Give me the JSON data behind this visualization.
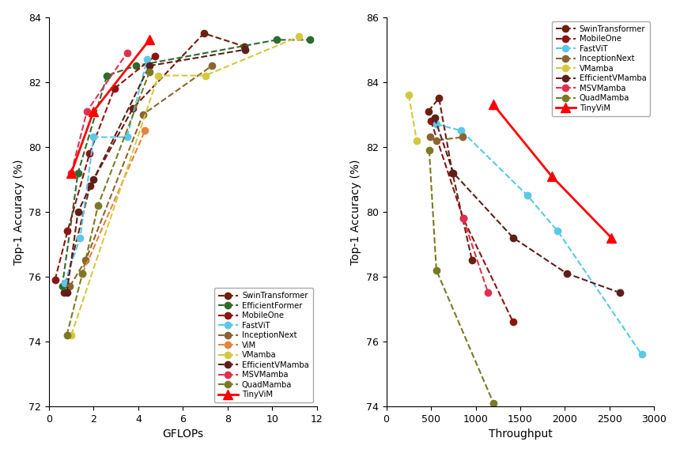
{
  "left_plot": {
    "xlabel": "GFLOPs",
    "ylabel": "Top-1 Accuracy (%)",
    "xlim": [
      0,
      12
    ],
    "ylim": [
      72,
      84
    ],
    "xticks": [
      0,
      2,
      4,
      6,
      8,
      10,
      12
    ],
    "yticks": [
      72,
      74,
      76,
      78,
      80,
      82,
      84
    ],
    "series": [
      {
        "name": "SwinTransformer",
        "x": [
          0.66,
          1.84,
          3.77,
          6.94,
          8.74
        ],
        "y": [
          75.5,
          78.8,
          81.2,
          83.5,
          83.1
        ],
        "color": "#6B2010",
        "marker": "o",
        "linestyle": "--",
        "linewidth": 1.5,
        "markersize": 6,
        "zorder": 2
      },
      {
        "name": "EfficientFormer",
        "x": [
          0.59,
          1.3,
          2.6,
          3.9,
          10.2,
          11.7
        ],
        "y": [
          75.7,
          79.2,
          82.2,
          82.5,
          83.3,
          83.3
        ],
        "color": "#2E6B2C",
        "marker": "o",
        "linestyle": "--",
        "linewidth": 1.5,
        "markersize": 6,
        "zorder": 2
      },
      {
        "name": "MobileOne",
        "x": [
          0.27,
          0.83,
          1.82,
          2.93,
          4.75
        ],
        "y": [
          75.9,
          77.4,
          79.8,
          81.8,
          82.8
        ],
        "color": "#8B1515",
        "marker": "o",
        "linestyle": "--",
        "linewidth": 1.5,
        "markersize": 6,
        "zorder": 2
      },
      {
        "name": "FastViT",
        "x": [
          0.7,
          1.4,
          2.0,
          3.5,
          4.4
        ],
        "y": [
          75.8,
          77.2,
          80.3,
          80.3,
          82.7
        ],
        "color": "#5BC8E8",
        "marker": "o",
        "linestyle": "--",
        "linewidth": 1.5,
        "markersize": 6,
        "zorder": 2
      },
      {
        "name": "InceptionNext",
        "x": [
          0.93,
          1.64,
          4.21,
          7.3
        ],
        "y": [
          75.7,
          76.5,
          81.0,
          82.5
        ],
        "color": "#8B6530",
        "marker": "o",
        "linestyle": "--",
        "linewidth": 1.5,
        "markersize": 6,
        "zorder": 2
      },
      {
        "name": "ViM",
        "x": [
          1.5,
          4.3
        ],
        "y": [
          76.1,
          80.5
        ],
        "color": "#E8823C",
        "marker": "o",
        "linestyle": "--",
        "linewidth": 1.5,
        "markersize": 6,
        "zorder": 2
      },
      {
        "name": "VMamba",
        "x": [
          1.0,
          4.9,
          7.0,
          11.2
        ],
        "y": [
          74.2,
          82.2,
          82.2,
          83.4
        ],
        "color": "#D4C840",
        "marker": "o",
        "linestyle": "--",
        "linewidth": 1.5,
        "markersize": 6,
        "zorder": 2
      },
      {
        "name": "EfficientVMamba",
        "x": [
          0.8,
          1.3,
          2.0,
          4.5,
          8.8
        ],
        "y": [
          75.5,
          78.0,
          79.0,
          82.5,
          83.0
        ],
        "color": "#5C1F1A",
        "marker": "o",
        "linestyle": "--",
        "linewidth": 1.5,
        "markersize": 6,
        "zorder": 2
      },
      {
        "name": "MSVMamba",
        "x": [
          1.0,
          1.7,
          3.5
        ],
        "y": [
          79.2,
          81.1,
          82.9
        ],
        "color": "#E03050",
        "marker": "o",
        "linestyle": "--",
        "linewidth": 1.5,
        "markersize": 6,
        "zorder": 2
      },
      {
        "name": "QuadMamba",
        "x": [
          0.8,
          1.5,
          2.2,
          4.5
        ],
        "y": [
          74.2,
          76.1,
          78.2,
          82.3
        ],
        "color": "#7A7A25",
        "marker": "o",
        "linestyle": "--",
        "linewidth": 1.5,
        "markersize": 6,
        "zorder": 2
      },
      {
        "name": "TinyViM",
        "x": [
          1.0,
          2.0,
          4.5
        ],
        "y": [
          79.2,
          81.1,
          83.3
        ],
        "color": "#FF0000",
        "marker": "^",
        "linestyle": "-",
        "linewidth": 2.0,
        "markersize": 8,
        "zorder": 5
      }
    ]
  },
  "right_plot": {
    "xlabel": "Throughput",
    "ylabel": "Top-1 Accuracy (%)",
    "xlim": [
      0,
      3000
    ],
    "ylim": [
      74,
      86
    ],
    "xticks": [
      0,
      500,
      1000,
      1500,
      2000,
      2500,
      3000
    ],
    "yticks": [
      74,
      76,
      78,
      80,
      82,
      84,
      86
    ],
    "series": [
      {
        "name": "SwinTransformer",
        "x": [
          470,
          590,
          740,
          960
        ],
        "y": [
          83.1,
          83.5,
          81.2,
          78.5
        ],
        "color": "#6B2010",
        "marker": "o",
        "linestyle": "--",
        "linewidth": 1.5,
        "markersize": 6,
        "zorder": 2
      },
      {
        "name": "MobileOne",
        "x": [
          500,
          860,
          1420
        ],
        "y": [
          82.8,
          79.8,
          76.6
        ],
        "color": "#8B1515",
        "marker": "o",
        "linestyle": "--",
        "linewidth": 1.5,
        "markersize": 6,
        "zorder": 2
      },
      {
        "name": "FastViT",
        "x": [
          560,
          840,
          1580,
          1920,
          2860
        ],
        "y": [
          82.7,
          82.5,
          80.5,
          79.4,
          75.6
        ],
        "color": "#5BC8E8",
        "marker": "o",
        "linestyle": "--",
        "linewidth": 1.5,
        "markersize": 6,
        "zorder": 2
      },
      {
        "name": "InceptionNext",
        "x": [
          490,
          560,
          850
        ],
        "y": [
          82.3,
          82.2,
          82.3
        ],
        "color": "#8B6530",
        "marker": "o",
        "linestyle": "--",
        "linewidth": 1.5,
        "markersize": 6,
        "zorder": 2
      },
      {
        "name": "VMamba",
        "x": [
          250,
          340
        ],
        "y": [
          83.6,
          82.2
        ],
        "color": "#D4C840",
        "marker": "o",
        "linestyle": "--",
        "linewidth": 1.5,
        "markersize": 6,
        "zorder": 2
      },
      {
        "name": "EfficientVMamba",
        "x": [
          540,
          750,
          1420,
          2020,
          2620
        ],
        "y": [
          82.9,
          81.2,
          79.2,
          78.1,
          77.5
        ],
        "color": "#5C1F1A",
        "marker": "o",
        "linestyle": "--",
        "linewidth": 1.5,
        "markersize": 6,
        "zorder": 2
      },
      {
        "name": "MSVMamba",
        "x": [
          860,
          1140
        ],
        "y": [
          79.8,
          77.5
        ],
        "color": "#E03050",
        "marker": "o",
        "linestyle": "--",
        "linewidth": 1.5,
        "markersize": 6,
        "zorder": 2
      },
      {
        "name": "QuadMamba",
        "x": [
          480,
          560,
          1200
        ],
        "y": [
          81.9,
          78.2,
          74.1
        ],
        "color": "#7A7A25",
        "marker": "o",
        "linestyle": "--",
        "linewidth": 1.5,
        "markersize": 6,
        "zorder": 2
      },
      {
        "name": "TinyViM",
        "x": [
          1200,
          1850,
          2520
        ],
        "y": [
          83.3,
          81.1,
          79.2
        ],
        "color": "#FF0000",
        "marker": "^",
        "linestyle": "-",
        "linewidth": 2.0,
        "markersize": 8,
        "zorder": 5
      }
    ]
  },
  "fig_width": 8.6,
  "fig_height": 5.73,
  "dpi": 100,
  "background_color": "#FFFFFF"
}
